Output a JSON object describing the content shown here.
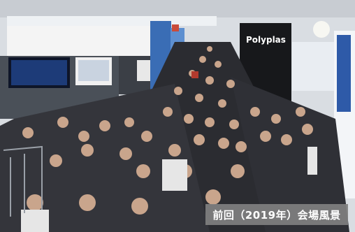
{
  "photo": {
    "caption": "前回（2019年）会場風景",
    "booth_sign": "Polyplas"
  }
}
